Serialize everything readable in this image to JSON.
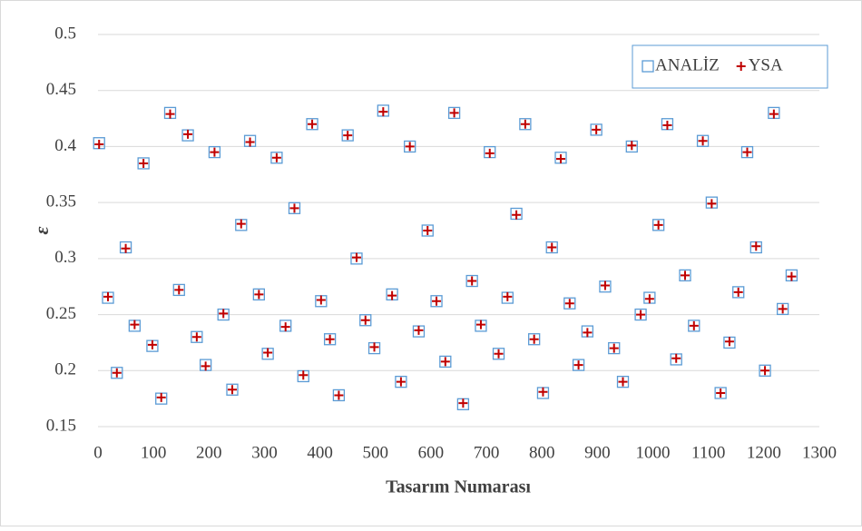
{
  "chart_data": {
    "type": "scatter",
    "xlabel": "Tasarım Numarası",
    "ylabel": "ε",
    "x": [
      2,
      18,
      34,
      50,
      66,
      82,
      98,
      114,
      130,
      146,
      162,
      178,
      194,
      210,
      226,
      242,
      258,
      274,
      290,
      306,
      322,
      338,
      354,
      370,
      386,
      402,
      418,
      434,
      450,
      466,
      482,
      498,
      514,
      530,
      546,
      562,
      578,
      594,
      610,
      626,
      642,
      658,
      674,
      690,
      706,
      722,
      738,
      754,
      770,
      786,
      802,
      818,
      834,
      850,
      866,
      882,
      898,
      914,
      930,
      946,
      962,
      978,
      994,
      1010,
      1026,
      1042,
      1058,
      1074,
      1090,
      1106,
      1122,
      1138,
      1154,
      1170,
      1186,
      1202,
      1218,
      1234,
      1250
    ],
    "series": [
      {
        "name": "ANALİZ",
        "color": "#5b9bd5",
        "marker": "square",
        "values": [
          0.403,
          0.265,
          0.198,
          0.31,
          0.24,
          0.385,
          0.222,
          0.175,
          0.43,
          0.272,
          0.41,
          0.23,
          0.205,
          0.395,
          0.25,
          0.183,
          0.33,
          0.405,
          0.268,
          0.215,
          0.39,
          0.24,
          0.345,
          0.195,
          0.42,
          0.262,
          0.228,
          0.178,
          0.41,
          0.3,
          0.245,
          0.22,
          0.432,
          0.268,
          0.19,
          0.4,
          0.235,
          0.325,
          0.262,
          0.208,
          0.43,
          0.17,
          0.28,
          0.24,
          0.395,
          0.215,
          0.265,
          0.34,
          0.42,
          0.228,
          0.18,
          0.31,
          0.39,
          0.26,
          0.205,
          0.235,
          0.415,
          0.275,
          0.22,
          0.19,
          0.4,
          0.25,
          0.265,
          0.33,
          0.42,
          0.21,
          0.285,
          0.24,
          0.405,
          0.35,
          0.18,
          0.225,
          0.27,
          0.395,
          0.31,
          0.2,
          0.43,
          0.255,
          0.285
        ]
      },
      {
        "name": "YSA",
        "color": "#c00000",
        "marker": "plus",
        "values": [
          0.402,
          0.266,
          0.198,
          0.309,
          0.241,
          0.385,
          0.223,
          0.176,
          0.429,
          0.272,
          0.411,
          0.23,
          0.204,
          0.395,
          0.251,
          0.183,
          0.331,
          0.404,
          0.268,
          0.216,
          0.39,
          0.239,
          0.345,
          0.196,
          0.42,
          0.263,
          0.228,
          0.178,
          0.41,
          0.301,
          0.245,
          0.221,
          0.431,
          0.267,
          0.19,
          0.4,
          0.236,
          0.325,
          0.262,
          0.208,
          0.43,
          0.171,
          0.28,
          0.241,
          0.394,
          0.215,
          0.266,
          0.339,
          0.42,
          0.228,
          0.181,
          0.31,
          0.389,
          0.26,
          0.205,
          0.234,
          0.415,
          0.276,
          0.22,
          0.19,
          0.401,
          0.25,
          0.264,
          0.33,
          0.419,
          0.211,
          0.285,
          0.24,
          0.405,
          0.349,
          0.18,
          0.226,
          0.27,
          0.395,
          0.311,
          0.2,
          0.429,
          0.255,
          0.284
        ]
      }
    ],
    "xlim": [
      0,
      1300
    ],
    "xticks": [
      0,
      100,
      200,
      300,
      400,
      500,
      600,
      700,
      800,
      900,
      1000,
      1100,
      1200,
      1300
    ],
    "ylim": [
      0.15,
      0.5
    ],
    "yticks": [
      0.15,
      0.2,
      0.25,
      0.3,
      0.35,
      0.4,
      0.45,
      0.5
    ],
    "grid": true,
    "legend": "upper right"
  }
}
